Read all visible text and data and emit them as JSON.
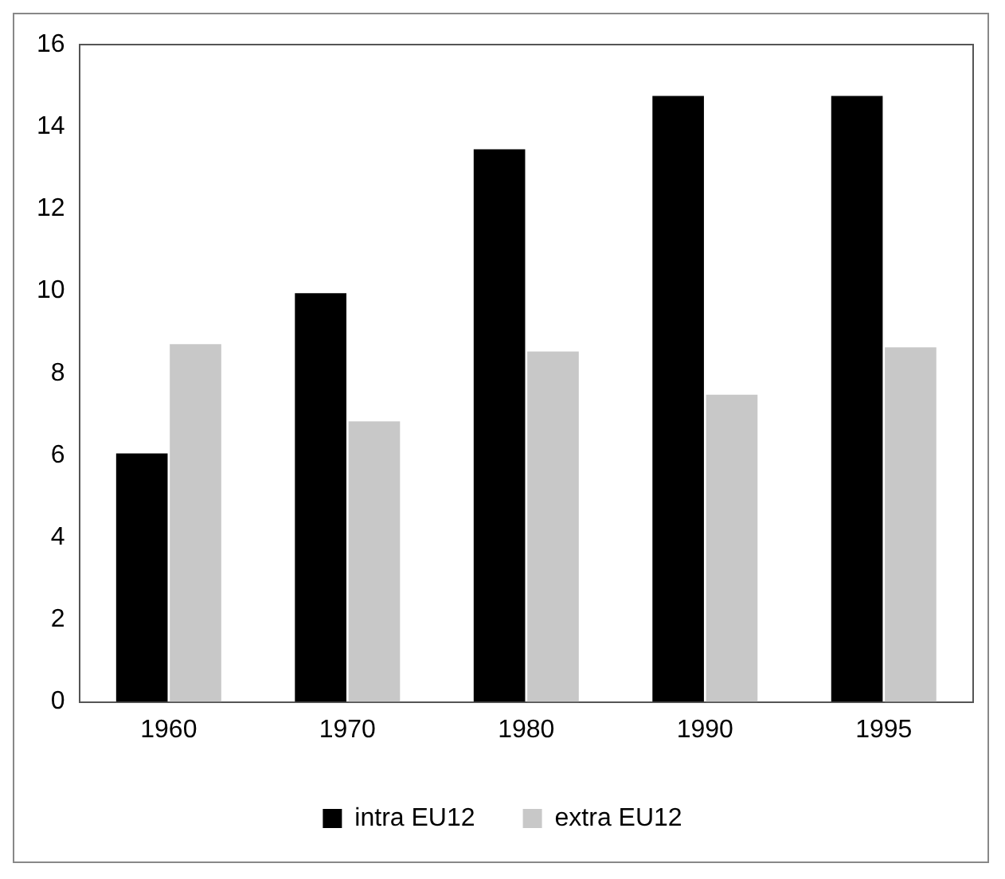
{
  "chart_data": {
    "type": "bar",
    "categories": [
      "1960",
      "1970",
      "1980",
      "1990",
      "1995"
    ],
    "series": [
      {
        "name": "intra EU12",
        "color": "#000000",
        "values": [
          6.05,
          9.95,
          13.45,
          14.75,
          14.75
        ]
      },
      {
        "name": "extra EU12",
        "color": "#c8c8c8",
        "values": [
          8.71,
          6.83,
          8.53,
          7.48,
          8.63
        ]
      }
    ],
    "ylim": [
      0,
      16
    ],
    "yticks": [
      0,
      2,
      4,
      6,
      8,
      10,
      12,
      14,
      16
    ],
    "grid": false,
    "legend": "bottom"
  }
}
